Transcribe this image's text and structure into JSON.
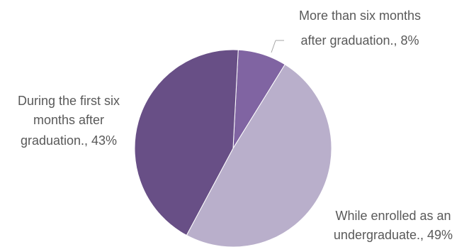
{
  "chart_data": {
    "type": "pie",
    "title": "",
    "slices": [
      {
        "label": "More than six months after graduation.",
        "value": 8,
        "display": "8%",
        "label_lines": [
          "More than six months",
          "after graduation., 8%"
        ],
        "color": "#8064A2"
      },
      {
        "label": "While enrolled as an undergraduate.",
        "value": 49,
        "display": "49%",
        "label_lines": [
          "While enrolled as an",
          "undergraduate., 49%"
        ],
        "color": "#B9AFCB"
      },
      {
        "label": "During the first six months after graduation.",
        "value": 43,
        "display": "43%",
        "label_lines": [
          "During the first six",
          "months after",
          "graduation., 43%"
        ],
        "color": "#684F86"
      }
    ],
    "start_angle_deg": 3,
    "direction": "clockwise",
    "legend": "none",
    "label_placement": "outside"
  }
}
